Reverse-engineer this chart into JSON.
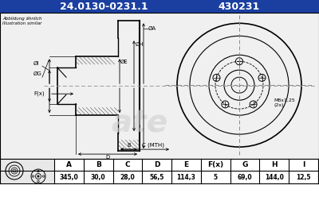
{
  "title_part_number": "24.0130-0231.1",
  "title_ref_number": "430231",
  "title_bg_color": "#1a3fa0",
  "title_text_color": "#ffffff",
  "top_note_line1": "Abbildung ähnlich",
  "top_note_line2": "Illustration similar",
  "table_headers": [
    "A",
    "B",
    "C",
    "D",
    "E",
    "F(x)",
    "G",
    "H",
    "I"
  ],
  "table_values": [
    "345,0",
    "30,0",
    "28,0",
    "56,5",
    "114,3",
    "5",
    "69,0",
    "144,0",
    "12,5"
  ],
  "thread_label": "M8x1,25\n(2x)",
  "bg_color": "#ffffff",
  "line_color": "#000000",
  "center_line_color": "#888888",
  "hatch_color": "#444444",
  "ate_watermark_color": "#d0d0d0"
}
